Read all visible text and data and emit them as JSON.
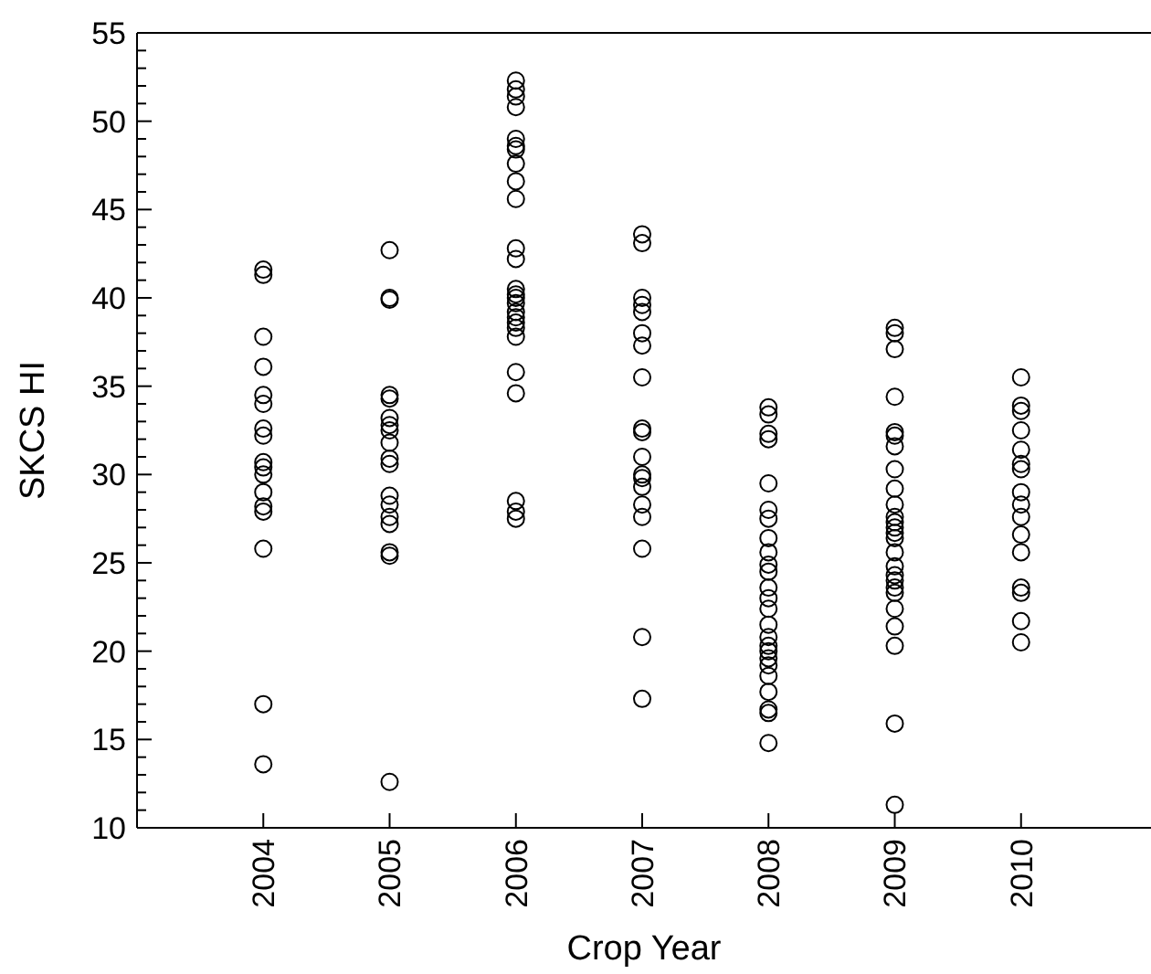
{
  "chart_data": {
    "type": "scatter",
    "xlabel": "Crop Year",
    "ylabel": "SKCS HI",
    "marker": "circle",
    "grid": false,
    "xlim": [
      2003,
      2011
    ],
    "xticks": [
      2004,
      2005,
      2006,
      2007,
      2008,
      2009,
      2010
    ],
    "ylim": [
      10,
      55
    ],
    "yticks": [
      10,
      {
        "value": 11,
        "label": null
      },
      {
        "value": 12,
        "label": null
      },
      {
        "value": 13,
        "label": null
      },
      {
        "value": 14,
        "label": null
      },
      15,
      {
        "value": 16,
        "label": null
      },
      {
        "value": 17,
        "label": null
      },
      {
        "value": 18,
        "label": null
      },
      {
        "value": 19,
        "label": null
      },
      20,
      {
        "value": 21,
        "label": null
      },
      {
        "value": 22,
        "label": null
      },
      {
        "value": 23,
        "label": null
      },
      {
        "value": 24,
        "label": null
      },
      25,
      {
        "value": 26,
        "label": null
      },
      {
        "value": 27,
        "label": null
      },
      {
        "value": 28,
        "label": null
      },
      {
        "value": 29,
        "label": null
      },
      30,
      {
        "value": 31,
        "label": null
      },
      {
        "value": 32,
        "label": null
      },
      {
        "value": 33,
        "label": null
      },
      {
        "value": 34,
        "label": null
      },
      35,
      {
        "value": 36,
        "label": null
      },
      {
        "value": 37,
        "label": null
      },
      {
        "value": 38,
        "label": null
      },
      {
        "value": 39,
        "label": null
      },
      40,
      {
        "value": 41,
        "label": null
      },
      {
        "value": 42,
        "label": null
      },
      {
        "value": 43,
        "label": null
      },
      {
        "value": 44,
        "label": null
      },
      45,
      {
        "value": 46,
        "label": null
      },
      {
        "value": 47,
        "label": null
      },
      {
        "value": 48,
        "label": null
      },
      {
        "value": 49,
        "label": null
      },
      50,
      {
        "value": 51,
        "label": null
      },
      {
        "value": 52,
        "label": null
      },
      {
        "value": 53,
        "label": null
      },
      {
        "value": 54,
        "label": null
      },
      55
    ],
    "series": [
      {
        "color": "#000000",
        "x": [
          2004,
          2004,
          2004,
          2004,
          2004,
          2004,
          2004,
          2004,
          2004,
          2004,
          2004,
          2004,
          2004,
          2004,
          2004,
          2004,
          2004
        ],
        "values": [
          41.6,
          41.3,
          37.8,
          36.1,
          34.5,
          34.0,
          32.6,
          32.2,
          30.7,
          30.4,
          30.0,
          29.0,
          28.2,
          27.9,
          25.8,
          17.0,
          13.6
        ]
      },
      {
        "color": "#000000",
        "x": [
          2005,
          2005,
          2005,
          2005,
          2005,
          2005,
          2005,
          2005,
          2005,
          2005,
          2005,
          2005,
          2005,
          2005,
          2005,
          2005,
          2005,
          2005
        ],
        "values": [
          42.7,
          40.0,
          39.9,
          34.5,
          34.3,
          33.2,
          32.8,
          32.5,
          31.8,
          30.9,
          30.6,
          28.8,
          28.3,
          27.6,
          27.2,
          25.6,
          25.4,
          12.6
        ]
      },
      {
        "color": "#000000",
        "x": [
          2006,
          2006,
          2006,
          2006,
          2006,
          2006,
          2006,
          2006,
          2006,
          2006,
          2006,
          2006,
          2006,
          2006,
          2006,
          2006,
          2006,
          2006,
          2006,
          2006,
          2006,
          2006,
          2006,
          2006,
          2006,
          2006
        ],
        "values": [
          52.3,
          51.8,
          51.4,
          50.8,
          49.0,
          48.6,
          48.4,
          47.6,
          46.6,
          45.6,
          42.8,
          42.2,
          40.5,
          40.2,
          40.0,
          39.7,
          39.2,
          38.9,
          38.6,
          38.3,
          37.8,
          35.8,
          34.6,
          28.5,
          27.9,
          27.5
        ]
      },
      {
        "color": "#000000",
        "x": [
          2007,
          2007,
          2007,
          2007,
          2007,
          2007,
          2007,
          2007,
          2007,
          2007,
          2007,
          2007,
          2007,
          2007,
          2007,
          2007,
          2007,
          2007,
          2007
        ],
        "values": [
          43.6,
          43.1,
          40.0,
          39.6,
          39.2,
          38.0,
          37.3,
          35.5,
          32.6,
          32.4,
          31.0,
          30.0,
          29.8,
          29.3,
          28.3,
          27.6,
          25.8,
          20.8,
          17.3
        ]
      },
      {
        "color": "#000000",
        "x": [
          2008,
          2008,
          2008,
          2008,
          2008,
          2008,
          2008,
          2008,
          2008,
          2008,
          2008,
          2008,
          2008,
          2008,
          2008,
          2008,
          2008,
          2008,
          2008,
          2008,
          2008,
          2008,
          2008,
          2008,
          2008
        ],
        "values": [
          33.8,
          33.4,
          32.3,
          32.0,
          29.5,
          28.0,
          27.5,
          26.4,
          25.6,
          24.9,
          24.5,
          23.6,
          23.0,
          22.4,
          21.5,
          20.8,
          20.3,
          20.0,
          19.6,
          19.2,
          18.6,
          17.7,
          16.7,
          16.5,
          14.8
        ]
      },
      {
        "color": "#000000",
        "x": [
          2009,
          2009,
          2009,
          2009,
          2009,
          2009,
          2009,
          2009,
          2009,
          2009,
          2009,
          2009,
          2009,
          2009,
          2009,
          2009,
          2009,
          2009,
          2009,
          2009,
          2009,
          2009,
          2009,
          2009,
          2009,
          2009
        ],
        "values": [
          38.3,
          38.0,
          37.1,
          34.4,
          32.4,
          32.2,
          31.6,
          30.3,
          29.2,
          28.3,
          27.6,
          27.3,
          27.0,
          26.7,
          26.4,
          25.6,
          24.8,
          24.3,
          24.0,
          23.6,
          23.3,
          22.4,
          21.4,
          20.3,
          15.9,
          11.3
        ]
      },
      {
        "color": "#000000",
        "x": [
          2010,
          2010,
          2010,
          2010,
          2010,
          2010,
          2010,
          2010,
          2010,
          2010,
          2010,
          2010,
          2010,
          2010,
          2010,
          2010
        ],
        "values": [
          35.5,
          33.9,
          33.6,
          32.5,
          31.4,
          30.6,
          30.3,
          29.0,
          28.3,
          27.6,
          26.6,
          25.6,
          23.6,
          23.3,
          21.7,
          20.5
        ]
      }
    ]
  }
}
